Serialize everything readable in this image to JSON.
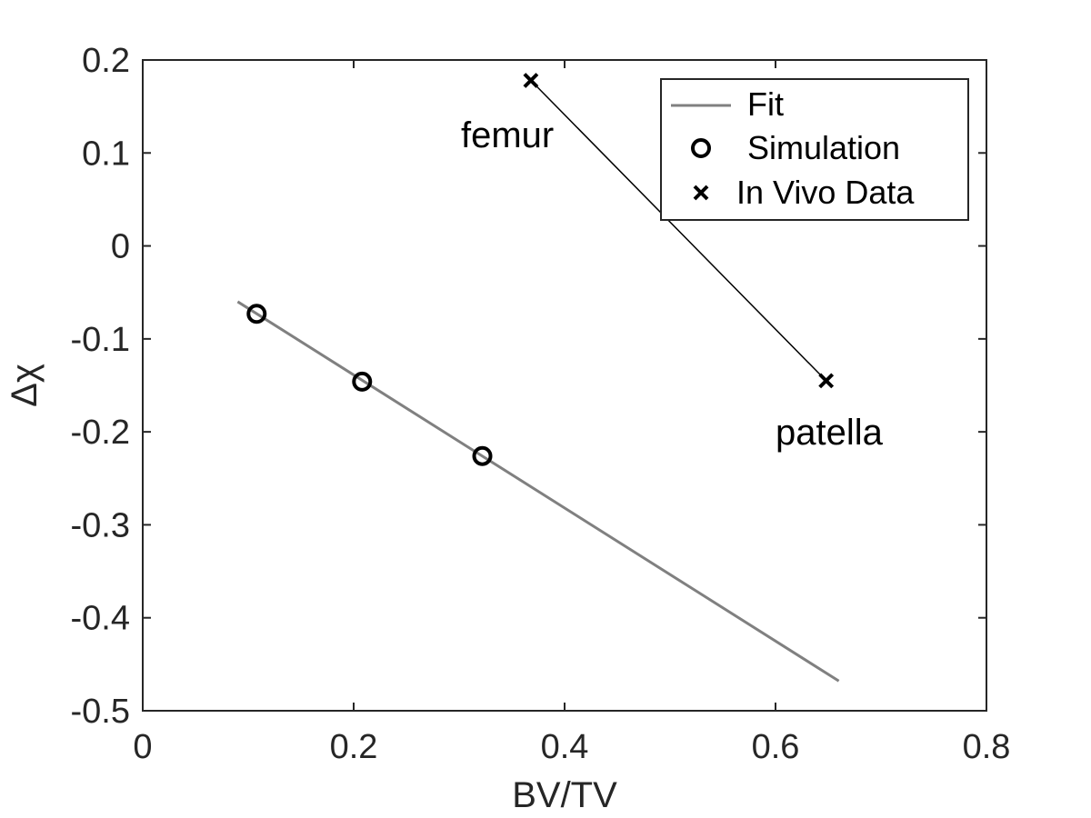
{
  "chart_data": {
    "type": "scatter",
    "xlabel": "BV/TV",
    "ylabel": "Δχ",
    "xlim": [
      0,
      0.8
    ],
    "ylim": [
      -0.5,
      0.2
    ],
    "xticks": [
      "0",
      "0.2",
      "0.4",
      "0.6",
      "0.8"
    ],
    "yticks": [
      "0.2",
      "0.1",
      "0",
      "-0.1",
      "-0.2",
      "-0.3",
      "-0.4",
      "-0.5"
    ],
    "grid": false,
    "legend_position": "top-right",
    "series": [
      {
        "name": "Fit",
        "style": "line",
        "color": "#808080",
        "x": [
          0.09,
          0.66
        ],
        "y": [
          -0.06,
          -0.468
        ]
      },
      {
        "name": "Simulation",
        "style": "circle-markers",
        "color": "#000000",
        "x": [
          0.108,
          0.208,
          0.322
        ],
        "y": [
          -0.073,
          -0.146,
          -0.226
        ]
      },
      {
        "name": "In Vivo Data",
        "style": "x-markers-connected",
        "color": "#000000",
        "x": [
          0.368,
          0.648
        ],
        "y": [
          0.178,
          -0.145
        ]
      }
    ],
    "annotations": [
      {
        "text": "femur",
        "x": 0.302,
        "y": 0.112
      },
      {
        "text": "patella",
        "x": 0.602,
        "y": -0.211
      }
    ]
  }
}
